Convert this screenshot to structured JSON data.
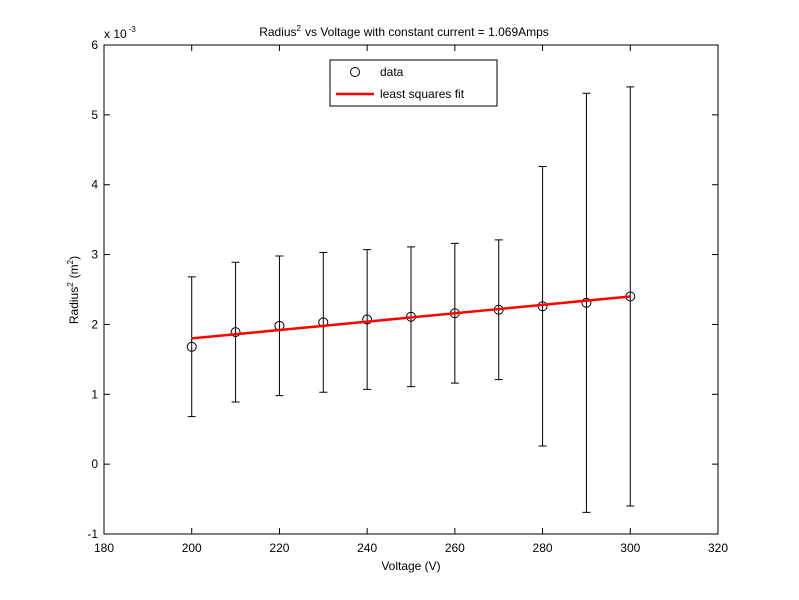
{
  "chart_data": {
    "type": "errorbar",
    "title_parts": [
      "Radius",
      "2",
      "vs Voltage with constant current = 1.069Amps"
    ],
    "xlabel": "Voltage (V)",
    "ylabel_parts": [
      "Radius",
      "2",
      "(m",
      "2",
      ")"
    ],
    "y_multiplier": [
      "x 10",
      "-3"
    ],
    "x": [
      200,
      210,
      220,
      230,
      240,
      250,
      260,
      270,
      280,
      290,
      300
    ],
    "series": [
      {
        "name": "data",
        "color": "#000000",
        "marker": "circle",
        "values": [
          1.68,
          1.89,
          1.98,
          2.03,
          2.07,
          2.11,
          2.16,
          2.21,
          2.26,
          2.31,
          2.4
        ],
        "error": [
          1.0,
          1.0,
          1.0,
          1.0,
          1.0,
          1.0,
          1.0,
          1.0,
          2.0,
          3.0,
          3.0
        ]
      },
      {
        "name": "least squares fit",
        "color": "#ff0000",
        "marker": "line",
        "values": [
          1.8,
          1.86,
          1.92,
          1.98,
          2.04,
          2.1,
          2.16,
          2.22,
          2.28,
          2.34,
          2.4
        ]
      }
    ],
    "xlim": [
      180,
      320
    ],
    "xticks": [
      180,
      200,
      220,
      240,
      260,
      280,
      300,
      320
    ],
    "ylim": [
      -1,
      6
    ],
    "yticks": [
      -1,
      0,
      1,
      2,
      3,
      4,
      5,
      6
    ],
    "grid": false,
    "legend": "north"
  }
}
